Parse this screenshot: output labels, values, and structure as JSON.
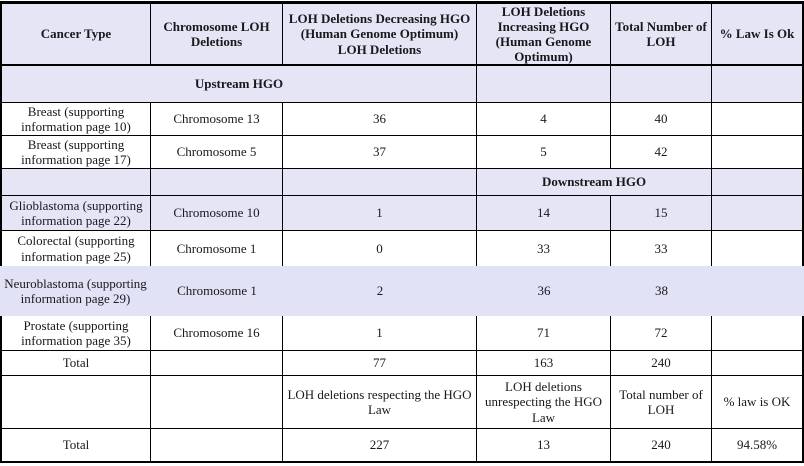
{
  "colors": {
    "header_background": "#e6e5f5",
    "highlight_row_background": "#e2e2f7",
    "border": "#000000",
    "text": "#18181d"
  },
  "table": {
    "header": [
      "Cancer Type",
      "Chromosome LOH Deletions",
      "LOH Deletions Decreasing HGO (Human Genome Optimum) LOH Deletions",
      "LOH Deletions Increasing HGO (Human Genome Optimum)",
      "Total Number of LOH",
      "% Law Is Ok"
    ],
    "upstream_label": "Upstream HGO",
    "downstream_label": "Downstream HGO",
    "data_rows": [
      {
        "cancer": "Breast (supporting information page 10)",
        "chromosome": "Chromosome 13",
        "decreasing": "36",
        "increasing": "4",
        "total": "40"
      },
      {
        "cancer": "Breast  (supporting information page 17)",
        "chromosome": "Chromosome 5",
        "decreasing": "37",
        "increasing": "5",
        "total": "42"
      },
      {
        "cancer": "Glioblastoma (supporting information page 22)",
        "chromosome": "Chromosome 10",
        "decreasing": "1",
        "increasing": "14",
        "total": "15"
      },
      {
        "cancer": "Colorectal (supporting information page 25)",
        "chromosome": "Chromosome 1",
        "decreasing": "0",
        "increasing": "33",
        "total": "33"
      },
      {
        "cancer": "Neuroblastoma (supporting information page 29)",
        "chromosome": "Chromosome 1",
        "decreasing": "2",
        "increasing": "36",
        "total": "38"
      },
      {
        "cancer": "Prostate (supporting information page 35)",
        "chromosome": "Chromosome 16",
        "decreasing": "1",
        "increasing": "71",
        "total": "72"
      }
    ],
    "totals_row": {
      "label": "Total",
      "decreasing": "77",
      "increasing": "163",
      "total": "240"
    },
    "footer_labels": {
      "decreasing": "LOH deletions respecting the HGO Law",
      "increasing": "LOH deletions unrespecting the HGO Law",
      "total": "Total number of LOH",
      "law": "% law is OK"
    },
    "final_row": {
      "label": "Total",
      "decreasing": "227",
      "increasing": "13",
      "total": "240",
      "law": "94.58%"
    }
  }
}
